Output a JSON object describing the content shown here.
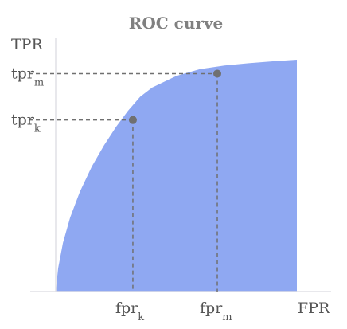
{
  "chart_data": {
    "type": "area",
    "title": "ROC curve",
    "xlabel": "FPR",
    "ylabel": "TPR",
    "xlim": [
      0,
      1
    ],
    "ylim": [
      0,
      1
    ],
    "grid": false,
    "fill_color": "#8fa8f2",
    "axis_color": "#e0e0e6",
    "guide_color": "#707070",
    "point_color": "#707070",
    "curve": {
      "x": [
        0,
        0.01,
        0.03,
        0.06,
        0.1,
        0.15,
        0.2,
        0.25,
        0.3,
        0.35,
        0.4,
        0.5,
        0.6,
        0.7,
        0.8,
        0.9,
        1.0
      ],
      "y": [
        0,
        0.1,
        0.21,
        0.32,
        0.43,
        0.54,
        0.63,
        0.71,
        0.78,
        0.84,
        0.88,
        0.93,
        0.96,
        0.975,
        0.985,
        0.993,
        1.0
      ]
    },
    "points": [
      {
        "name": "k",
        "x": 0.32,
        "y": 0.74,
        "x_label": "fpr",
        "x_sub": "k",
        "y_label": "tpr",
        "y_sub": "k"
      },
      {
        "name": "m",
        "x": 0.67,
        "y": 0.94,
        "x_label": "fpr",
        "x_sub": "m",
        "y_label": "tpr",
        "y_sub": "m"
      }
    ]
  }
}
